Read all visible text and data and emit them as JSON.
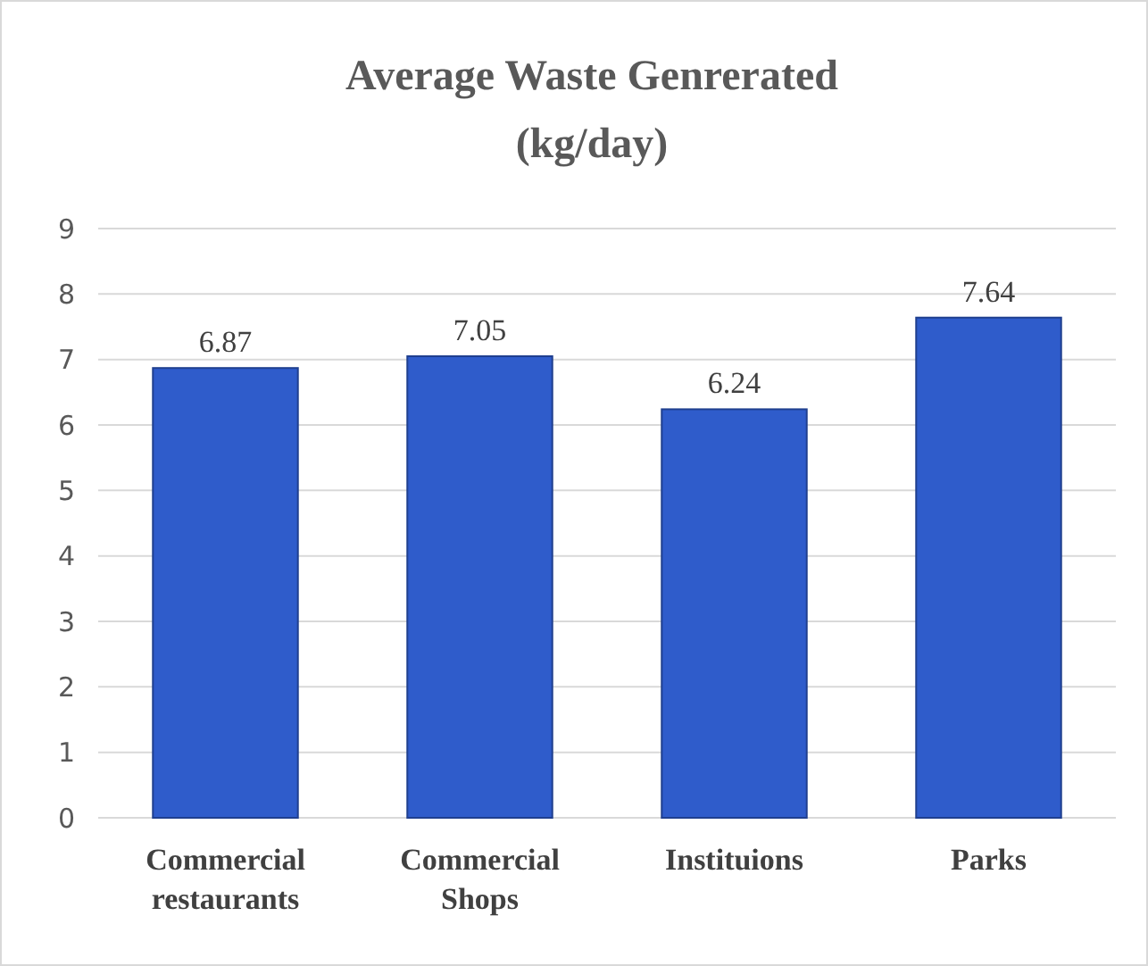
{
  "chart_data": {
    "type": "bar",
    "title": "Average Waste Genrerated\n(kg/day)",
    "categories": [
      "Commercial restaurants",
      "Commercial Shops",
      "Instituions",
      "Parks"
    ],
    "values": [
      6.87,
      7.05,
      6.24,
      7.64
    ],
    "color": "#2f5ccb",
    "ylim": [
      0,
      9
    ],
    "yticks": [
      0,
      1,
      2,
      3,
      4,
      5,
      6,
      7,
      8,
      9
    ],
    "grid": "y",
    "data_labels": true
  }
}
